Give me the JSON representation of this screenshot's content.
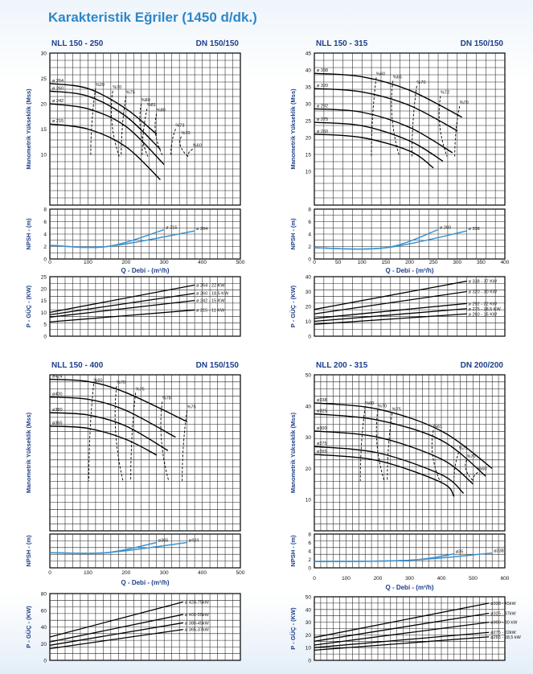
{
  "page": {
    "title": "Karakteristik Eğriler (1450 d/dk.)"
  },
  "colors": {
    "title": "#2f86c6",
    "header": "#1d3f8a",
    "npsh_line": "#3a93d0",
    "curve": "#000000"
  },
  "chart_data": [
    {
      "type": "line",
      "model": "NLL 150 - 250",
      "dn": "DN 150/150",
      "head": {
        "ylabel": "Manometrik Yükseklik (Mss)",
        "xlim": [
          0,
          500
        ],
        "ylim": [
          0,
          30
        ],
        "yticks": [
          "10",
          "15",
          "20",
          "25",
          "30"
        ],
        "series": [
          {
            "name": "ø 264",
            "x": [
              0,
              100,
              200,
              280
            ],
            "y": [
              24,
              23,
              19,
              14
            ]
          },
          {
            "name": "ø 260",
            "x": [
              0,
              100,
              200,
              290
            ],
            "y": [
              22.5,
              21.5,
              17.5,
              11
            ]
          },
          {
            "name": "ø 242",
            "x": [
              0,
              100,
              200,
              300
            ],
            "y": [
              20,
              19,
              15.5,
              8
            ]
          },
          {
            "name": "ø 215",
            "x": [
              0,
              100,
              200,
              290
            ],
            "y": [
              16,
              15,
              11.5,
              5
            ]
          }
        ],
        "efficiency": [
          {
            "label": "%70",
            "x": [
              140,
              150,
              175
            ]
          },
          {
            "label": "%75",
            "x": [
              170,
              180,
              210
            ]
          },
          {
            "label": "%80",
            "x": [
              200,
              210,
              235
            ]
          },
          {
            "label": "%81",
            "x": [
              230,
              240,
              260
            ]
          },
          {
            "label": "%80",
            "x": [
              260,
              265,
              280
            ]
          },
          {
            "label": "%73",
            "x": [
              290,
              300,
              310
            ]
          },
          {
            "label": "%70",
            "x": [
              310,
              320,
              330
            ]
          },
          {
            "label": "%60",
            "x": [
              340,
              350,
              360
            ]
          }
        ],
        "iso_labels": [
          {
            "text": "%20",
            "x": 120,
            "y": 23.5
          },
          {
            "text": "%70",
            "x": 165,
            "y": 23
          },
          {
            "text": "%75",
            "x": 200,
            "y": 22
          },
          {
            "text": "%80",
            "x": 240,
            "y": 20.5
          },
          {
            "text": "%81",
            "x": 255,
            "y": 19.5
          },
          {
            "text": "%80",
            "x": 280,
            "y": 18.5
          },
          {
            "text": "%73",
            "x": 330,
            "y": 15.5
          },
          {
            "text": "%70",
            "x": 345,
            "y": 14
          },
          {
            "text": "%60",
            "x": 375,
            "y": 11.5
          }
        ]
      },
      "npsh": {
        "ylabel": "NPSH - (m)",
        "xlim": [
          0,
          500
        ],
        "ylim": [
          0,
          8
        ],
        "yticks": [
          "0",
          "2",
          "4",
          "6",
          "8"
        ],
        "series": [
          {
            "name": "ø 215",
            "x": [
              0,
              150,
              300
            ],
            "y": [
              2.2,
              2,
              4.7
            ]
          },
          {
            "name": "ø 264",
            "x": [
              0,
              150,
              380
            ],
            "y": [
              2.2,
              2,
              4.5
            ]
          }
        ]
      },
      "xticks": [
        "0",
        "100",
        "200",
        "300",
        "400",
        "500"
      ],
      "xlabel": "Q - Debi - (m³/h)",
      "power": {
        "ylabel": "P - GÜÇ - (KW)",
        "xlim": [
          0,
          500
        ],
        "ylim": [
          0,
          25
        ],
        "yticks": [
          "0",
          "5",
          "10",
          "15",
          "20",
          "25"
        ],
        "series": [
          {
            "name": "ø 264 - 22 KW",
            "x": [
              0,
              380
            ],
            "y": [
              10,
              21.5
            ]
          },
          {
            "name": "ø 260 - 18,5 KW",
            "x": [
              0,
              380
            ],
            "y": [
              9,
              18
            ]
          },
          {
            "name": "ø 242 - 15 KW",
            "x": [
              0,
              380
            ],
            "y": [
              8,
              15
            ]
          },
          {
            "name": "ø 215 - 11 KW",
            "x": [
              0,
              380
            ],
            "y": [
              6,
              11
            ]
          }
        ]
      }
    },
    {
      "type": "line",
      "model": "NLL 150 - 315",
      "dn": "DN 150/150",
      "head": {
        "ylabel": "Manometrik Yükseklik (Mss)",
        "xlim": [
          0,
          400
        ],
        "ylim": [
          0,
          45
        ],
        "yticks": [
          "10",
          "15",
          "20",
          "25",
          "30",
          "35",
          "40",
          "45"
        ],
        "series": [
          {
            "name": "ø 338",
            "x": [
              0,
              100,
              200,
              310
            ],
            "y": [
              39,
              38,
              34,
              26
            ]
          },
          {
            "name": "ø 320",
            "x": [
              0,
              100,
              200,
              300
            ],
            "y": [
              34.5,
              33.5,
              29.5,
              22
            ]
          },
          {
            "name": "ø 292",
            "x": [
              0,
              100,
              200,
              290
            ],
            "y": [
              28.5,
              27.5,
              23,
              15.5
            ]
          },
          {
            "name": "ø 275",
            "x": [
              0,
              100,
              200,
              270
            ],
            "y": [
              24.5,
              23.5,
              19,
              13
            ]
          },
          {
            "name": "ø 260",
            "x": [
              0,
              100,
              200,
              250
            ],
            "y": [
              21,
              20,
              16,
              11
            ]
          }
        ],
        "iso_labels": [
          {
            "text": "%60",
            "x": 130,
            "y": 38.5
          },
          {
            "text": "%65",
            "x": 165,
            "y": 37.5
          },
          {
            "text": "%70",
            "x": 215,
            "y": 36
          },
          {
            "text": "%72",
            "x": 265,
            "y": 33
          },
          {
            "text": "%70",
            "x": 305,
            "y": 30
          }
        ]
      },
      "npsh": {
        "ylabel": "NPSH - (m)",
        "xlim": [
          0,
          400
        ],
        "ylim": [
          0,
          8
        ],
        "yticks": [
          "0",
          "2",
          "4",
          "6",
          "8"
        ],
        "series": [
          {
            "name": "ø 260",
            "x": [
              0,
              150,
              260
            ],
            "y": [
              1.8,
              1.8,
              4.7
            ]
          },
          {
            "name": "ø 338",
            "x": [
              0,
              150,
              320
            ],
            "y": [
              1.8,
              1.8,
              4.5
            ]
          }
        ]
      },
      "xticks": [
        "0",
        "50",
        "100",
        "150",
        "200",
        "250",
        "300",
        "350",
        "400"
      ],
      "xlabel": "Q - Debi - (m³/h)",
      "power": {
        "ylabel": "P - GÜÇ - (KW)",
        "xlim": [
          0,
          400
        ],
        "ylim": [
          0,
          40
        ],
        "yticks": [
          "0",
          "10",
          "20",
          "30",
          "40"
        ],
        "series": [
          {
            "name": "ø 338 - 37 KW",
            "x": [
              0,
              320
            ],
            "y": [
              18,
              37
            ]
          },
          {
            "name": "ø 320 - 30 KW",
            "x": [
              0,
              320
            ],
            "y": [
              15,
              30
            ]
          },
          {
            "name": "ø 292 - 22 KW",
            "x": [
              0,
              320
            ],
            "y": [
              12,
              22
            ]
          },
          {
            "name": "ø 275 - 18,5 KW",
            "x": [
              0,
              320
            ],
            "y": [
              10,
              18.5
            ]
          },
          {
            "name": "ø 260 - 15 KW",
            "x": [
              0,
              320
            ],
            "y": [
              8,
              15
            ]
          }
        ]
      }
    },
    {
      "type": "line",
      "model": "NLL 150 - 400",
      "dn": "DN 150/150",
      "head": {
        "ylabel": "Manometrik Yükseklik (Mss)",
        "xlim": [
          0,
          500
        ],
        "ylim": [
          0,
          70
        ],
        "yticks": [],
        "series": [
          {
            "name": "ø424",
            "x": [
              0,
              100,
              200,
              360
            ],
            "y": [
              68,
              67,
              62,
              49
            ]
          },
          {
            "name": "ø400",
            "x": [
              0,
              100,
              200,
              330
            ],
            "y": [
              60,
              59,
              54,
              42
            ]
          },
          {
            "name": "ø380",
            "x": [
              0,
              100,
              200,
              310
            ],
            "y": [
              53,
              52,
              47,
              36
            ]
          },
          {
            "name": "ø365",
            "x": [
              0,
              100,
              200,
              280
            ],
            "y": [
              47,
              46,
              41,
              34
            ]
          }
        ],
        "iso_labels": [
          {
            "text": "%60",
            "x": 115,
            "y": 67
          },
          {
            "text": "%70",
            "x": 175,
            "y": 66
          },
          {
            "text": "%75",
            "x": 225,
            "y": 63
          },
          {
            "text": "%78",
            "x": 295,
            "y": 59
          },
          {
            "text": "%75",
            "x": 360,
            "y": 55
          }
        ]
      },
      "npsh": {
        "ylabel": "NPSH - (m)",
        "xlim": [
          0,
          500
        ],
        "ylim": [
          0,
          8
        ],
        "yticks": [],
        "series": [
          {
            "name": "ø365",
            "x": [
              0,
              150,
              280
            ],
            "y": [
              3.6,
              3.6,
              6
            ]
          },
          {
            "name": "ø424",
            "x": [
              0,
              150,
              360
            ],
            "y": [
              3.6,
              3.6,
              6
            ]
          }
        ]
      },
      "xticks": [
        "0",
        "100",
        "200",
        "300",
        "400",
        "500"
      ],
      "xlabel": "Q - Debi - (m³/h)",
      "power": {
        "ylabel": "P - GÜÇ - (KW)",
        "xlim": [
          0,
          500
        ],
        "ylim": [
          0,
          80
        ],
        "yticks": [
          "0",
          "20",
          "40",
          "60",
          "80"
        ],
        "series": [
          {
            "name": "ø 424-75kW",
            "x": [
              0,
              350
            ],
            "y": [
              28,
              70
            ]
          },
          {
            "name": "ø 400-55kW",
            "x": [
              0,
              350
            ],
            "y": [
              22,
              55
            ]
          },
          {
            "name": "ø 380-45kW",
            "x": [
              0,
              350
            ],
            "y": [
              18,
              45
            ]
          },
          {
            "name": "ø 365-37kW",
            "x": [
              0,
              350
            ],
            "y": [
              14,
              37
            ]
          }
        ]
      }
    },
    {
      "type": "line",
      "model": "NLL 200 - 315",
      "dn": "DN 200/200",
      "head": {
        "ylabel": "Manometrik Yükseklik (Mss)",
        "xlim": [
          0,
          600
        ],
        "ylim": [
          0,
          50
        ],
        "yticks": [
          "10",
          "20",
          "30",
          "40",
          "50"
        ],
        "series": [
          {
            "name": "ø338",
            "x": [
              0,
              200,
              400,
              560
            ],
            "y": [
              41,
              39,
              32,
              20
            ]
          },
          {
            "name": "ø325",
            "x": [
              0,
              200,
              400,
              540
            ],
            "y": [
              37.5,
              35.5,
              29,
              17.5
            ]
          },
          {
            "name": "ø300",
            "x": [
              0,
              200,
              400,
              500
            ],
            "y": [
              32,
              30,
              23,
              15
            ]
          },
          {
            "name": "ø275",
            "x": [
              0,
              200,
              400,
              470
            ],
            "y": [
              27,
              25,
              18,
              12
            ]
          },
          {
            "name": "ø265",
            "x": [
              0,
              200,
              400,
              440
            ],
            "y": [
              24.5,
              22.5,
              15.5,
              11
            ]
          }
        ],
        "iso_labels": [
          {
            "text": "%60",
            "x": 160,
            "y": 40.5
          },
          {
            "text": "%70",
            "x": 200,
            "y": 39.5
          },
          {
            "text": "%75",
            "x": 245,
            "y": 38.5
          },
          {
            "text": "%61",
            "x": 375,
            "y": 33
          },
          {
            "text": "%75",
            "x": 455,
            "y": 26
          },
          {
            "text": "%70",
            "x": 480,
            "y": 23.5
          },
          {
            "text": "%60",
            "x": 515,
            "y": 19.5
          }
        ]
      },
      "npsh": {
        "ylabel": "NPSH - (m)",
        "xlim": [
          0,
          600
        ],
        "ylim": [
          0,
          8
        ],
        "yticks": [
          "0",
          "2",
          "4",
          "6",
          "8"
        ],
        "series": [
          {
            "name": "ø35",
            "x": [
              0,
              300,
              440
            ],
            "y": [
              1.5,
              1.8,
              3.3
            ]
          },
          {
            "name": "ø338",
            "x": [
              0,
              300,
              560
            ],
            "y": [
              1.5,
              1.8,
              3.5
            ]
          }
        ]
      },
      "xticks": [
        "0",
        "100",
        "200",
        "300",
        "400",
        "500",
        "600"
      ],
      "xlabel": "Q - Debi - (m³/h)",
      "power": {
        "ylabel": "P - GÜÇ - (KW)",
        "xlim": [
          0,
          600
        ],
        "ylim": [
          0,
          50
        ],
        "yticks": [
          "0",
          "10",
          "20",
          "30",
          "40",
          "50"
        ],
        "series": [
          {
            "name": "ø338 - 45kW",
            "x": [
              0,
              550
            ],
            "y": [
              18,
              45
            ]
          },
          {
            "name": "ø325 - 37kW",
            "x": [
              0,
              550
            ],
            "y": [
              15,
              37
            ]
          },
          {
            "name": "ø300 - 30 kW",
            "x": [
              0,
              550
            ],
            "y": [
              12,
              30
            ]
          },
          {
            "name": "ø275 - 22kW",
            "x": [
              0,
              550
            ],
            "y": [
              10,
              22
            ]
          },
          {
            "name": "ø265 - 18,5 kW",
            "x": [
              0,
              550
            ],
            "y": [
              8,
              18.5
            ]
          }
        ]
      }
    }
  ]
}
